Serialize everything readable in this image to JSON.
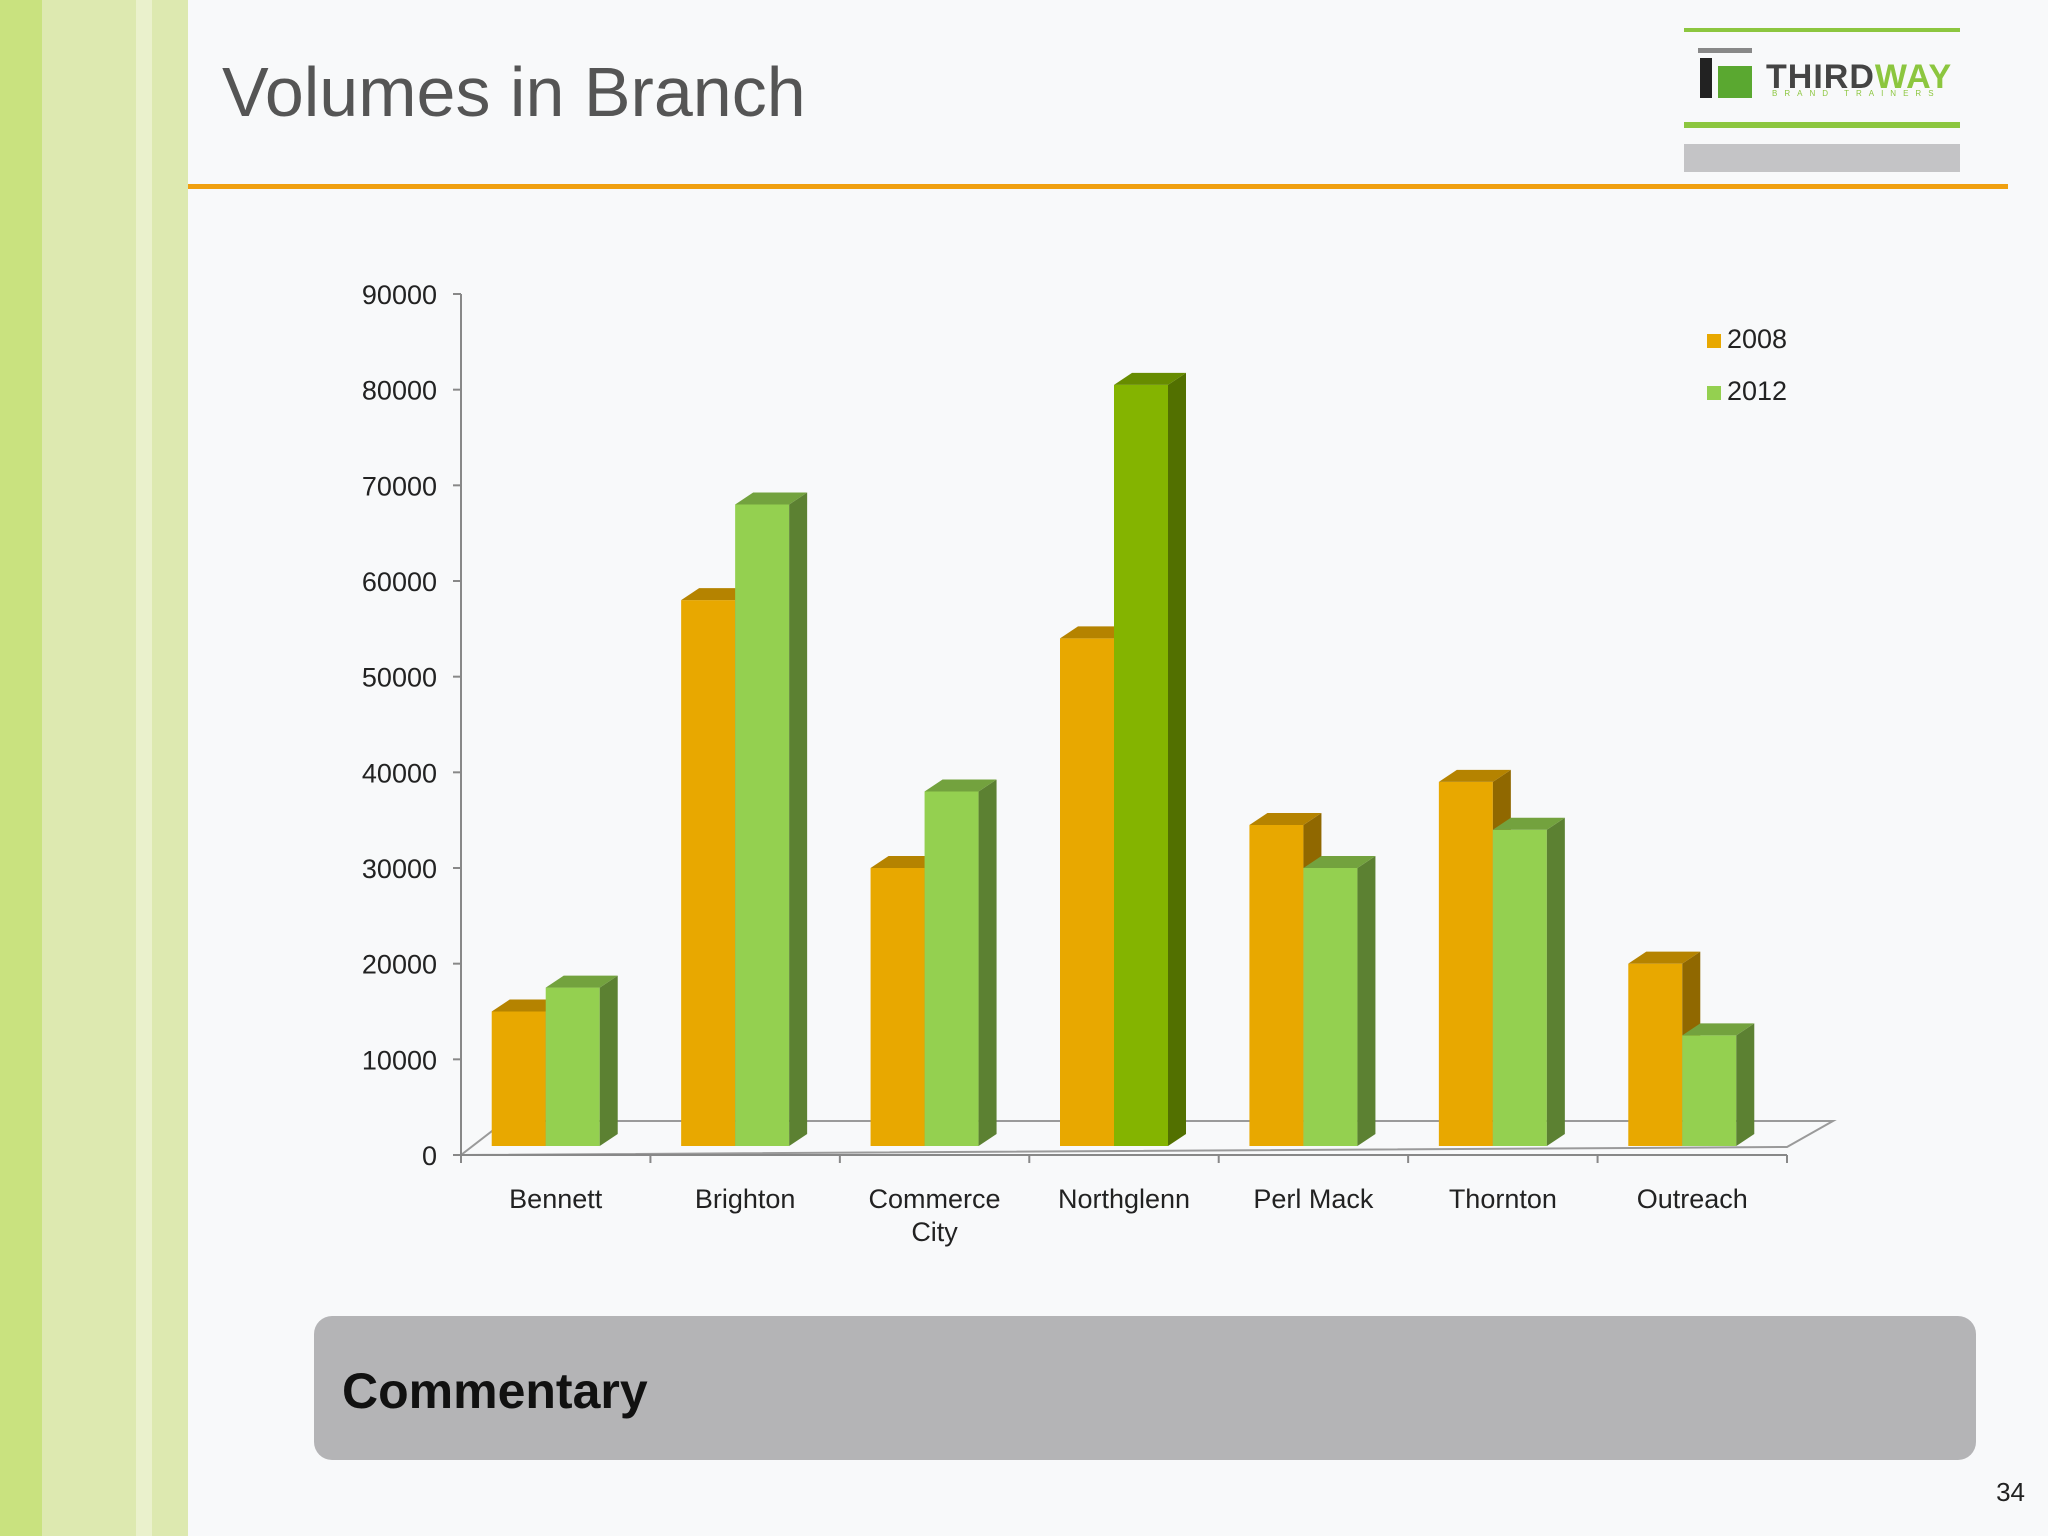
{
  "slide": {
    "title": "Volumes in Branch",
    "commentary_label": "Commentary",
    "page_number": "34"
  },
  "logo": {
    "brand": "THIRDWAY",
    "tagline": "BRAND TRAINERS"
  },
  "colors": {
    "accent_rule": "#f0a010",
    "commentary_bg": "#b4b4b6",
    "series_2008": "#e8a800",
    "series_2012": "#94d050",
    "series_2012_highlight": "#84b400",
    "stripe_dark": "#c9e27f",
    "stripe_light": "#dfeab2"
  },
  "chart_data": {
    "type": "bar",
    "title": "",
    "xlabel": "",
    "ylabel": "",
    "ylim": [
      0,
      90000
    ],
    "yticks": [
      0,
      10000,
      20000,
      30000,
      40000,
      50000,
      60000,
      70000,
      80000,
      90000
    ],
    "categories": [
      "Bennett",
      "Brighton",
      "Commerce City",
      "Northglenn",
      "Perl Mack",
      "Thornton",
      "Outreach"
    ],
    "series": [
      {
        "name": "2008",
        "values": [
          15000,
          58000,
          30000,
          54000,
          34500,
          39000,
          20000
        ]
      },
      {
        "name": "2012",
        "values": [
          17500,
          68000,
          38000,
          80500,
          30000,
          34000,
          12500
        ]
      }
    ],
    "highlight": {
      "series": "2012",
      "category": "Northglenn"
    },
    "legend_position": "top-right",
    "grid": false,
    "style": "3d-clustered-column"
  }
}
